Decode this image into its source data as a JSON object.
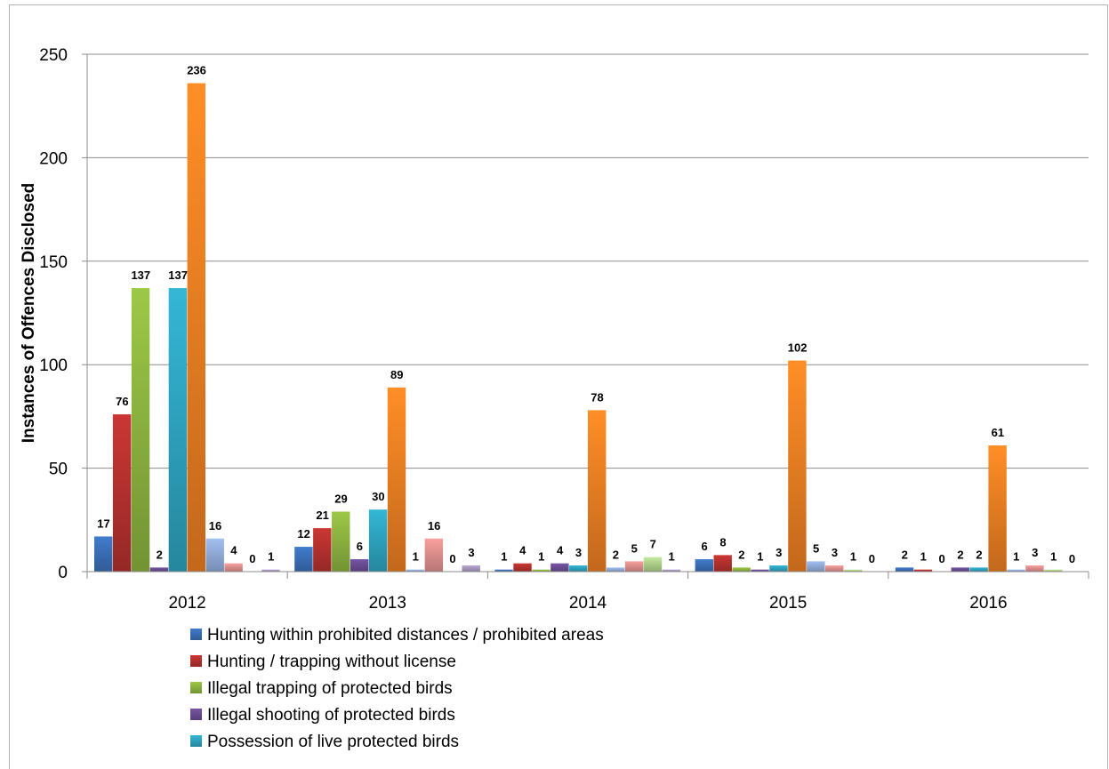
{
  "chart_data": {
    "type": "bar",
    "title": "",
    "xlabel": "",
    "ylabel": "Instances of Offences Disclosed",
    "ylim": [
      0,
      250
    ],
    "yticks": [
      0,
      50,
      100,
      150,
      200,
      250
    ],
    "grid": true,
    "legend_position": "bottom",
    "categories": [
      "2012",
      "2013",
      "2014",
      "2015",
      "2016"
    ],
    "series": [
      {
        "name": "Hunting within prohibited distances  / prohibited areas",
        "color": "#3a6fb7",
        "values": [
          17,
          12,
          1,
          6,
          2
        ],
        "labels": [
          "17",
          "12",
          "1",
          "6",
          "2"
        ]
      },
      {
        "name": "Hunting / trapping without license",
        "color": "#b5312e",
        "values": [
          76,
          21,
          4,
          8,
          1
        ],
        "labels": [
          "76",
          "21",
          "4",
          "8",
          "1"
        ]
      },
      {
        "name": "Illegal trapping of protected birds",
        "color": "#8cb33f",
        "values": [
          137,
          29,
          1,
          2,
          0
        ],
        "labels": [
          "137",
          "29",
          "1",
          "2",
          "0"
        ]
      },
      {
        "name": "Illegal shooting of protected birds",
        "color": "#6a4c93",
        "values": [
          2,
          6,
          4,
          1,
          2
        ],
        "labels": [
          "2",
          "6",
          "4",
          "1",
          "2"
        ]
      },
      {
        "name": "Possession of live protected birds",
        "color": "#2ea3bf",
        "values": [
          137,
          30,
          3,
          3,
          2
        ],
        "labels": [
          "137",
          "30",
          "3",
          "3",
          "2"
        ]
      },
      {
        "name": "",
        "color": "#ee7f22",
        "values": [
          236,
          89,
          78,
          102,
          61
        ],
        "labels": [
          "236",
          "89",
          "78",
          "102",
          "61"
        ]
      },
      {
        "name": "",
        "color": "#91abd8",
        "values": [
          16,
          1,
          2,
          5,
          1
        ],
        "labels": [
          "16",
          "1",
          "2",
          "5",
          "1"
        ]
      },
      {
        "name": "",
        "color": "#de8f8d",
        "values": [
          4,
          16,
          5,
          3,
          3
        ],
        "labels": [
          "4",
          "16",
          "5",
          "3",
          "3"
        ]
      },
      {
        "name": "",
        "color": "#add08a",
        "values": [
          0,
          0,
          7,
          1,
          1
        ],
        "labels": [
          "0",
          "0",
          "7",
          "1",
          "1"
        ]
      },
      {
        "name": "",
        "color": "#a596c0",
        "values": [
          1,
          3,
          1,
          0,
          0
        ],
        "labels": [
          "1",
          "3",
          "1",
          "0",
          "0"
        ]
      }
    ],
    "legend": [
      "Hunting within prohibited distances  / prohibited areas",
      "Hunting / trapping without license",
      "Illegal trapping of protected birds",
      "Illegal shooting of protected birds",
      "Possession of live protected birds"
    ]
  }
}
